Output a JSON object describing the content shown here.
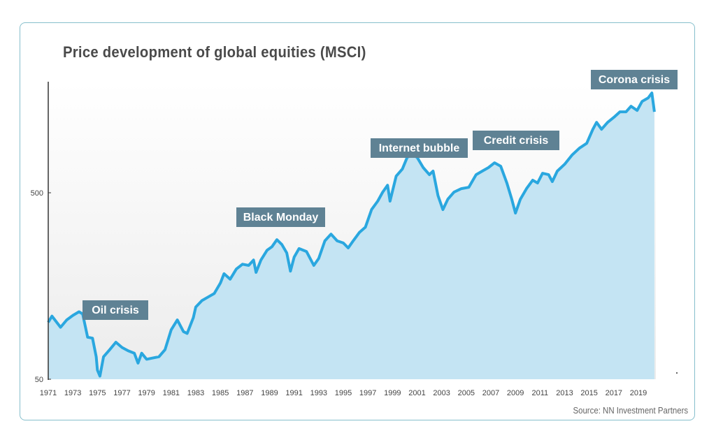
{
  "chart_data": {
    "type": "area",
    "title": "Price development of global equities (MSCI)",
    "source": "Source: NN Investment Partners",
    "y_scale": "log",
    "ylim": [
      50,
      1800
    ],
    "y_ticks": [
      "50",
      "500"
    ],
    "x_ticks": [
      "1971",
      "1973",
      "1975",
      "1977",
      "1979",
      "1981",
      "1983",
      "1985",
      "1987",
      "1989",
      "1991",
      "1993",
      "1995",
      "1997",
      "1999",
      "2001",
      "2003",
      "2005",
      "2007",
      "2009",
      "2011",
      "2013",
      "2015",
      "2017",
      "2019"
    ],
    "xlim": [
      1971,
      2020.3
    ],
    "grid": false,
    "colors": {
      "line": "#2aa7df",
      "fill": "#c4e4f3",
      "annotation": "#5f8294"
    },
    "annotations": [
      {
        "label": "Oil crisis",
        "year": 1974
      },
      {
        "label": "Black Monday",
        "year": 1987
      },
      {
        "label": "Internet bubble",
        "year": 2000
      },
      {
        "label": "Credit crisis",
        "year": 2008
      },
      {
        "label": "Corona crisis",
        "year": 2020
      }
    ],
    "series": [
      {
        "x": [
          1971.0,
          1971.3,
          1972,
          1972.5,
          1973,
          1973.5,
          1973.8,
          1974.2,
          1974.6,
          1974.9,
          1975.0,
          1975.2,
          1975.5,
          1976,
          1976.5,
          1977,
          1977.5,
          1978,
          1978.3,
          1978.6,
          1979,
          1979.5,
          1980,
          1980.5,
          1981,
          1981.5,
          1982,
          1982.3,
          1982.8,
          1983,
          1983.5,
          1984,
          1984.5,
          1985,
          1985.3,
          1985.8,
          1986.3,
          1986.8,
          1987.3,
          1987.7,
          1987.9,
          1988.3,
          1988.8,
          1989.2,
          1989.6,
          1990.0,
          1990.4,
          1990.7,
          1991.0,
          1991.4,
          1992,
          1992.6,
          1993.0,
          1993.5,
          1994,
          1994.5,
          1995,
          1995.4,
          1995.8,
          1996.3,
          1996.8,
          1997.3,
          1997.8,
          1998.2,
          1998.6,
          1998.8,
          1999.3,
          1999.8,
          2000.2,
          2000.6,
          2001.0,
          2001.5,
          2002.0,
          2002.3,
          2002.7,
          2003.1,
          2003.5,
          2004,
          2004.6,
          2005.2,
          2005.8,
          2006.3,
          2006.8,
          2007.3,
          2007.8,
          2008.3,
          2008.7,
          2009.0,
          2009.4,
          2009.9,
          2010.4,
          2010.8,
          2011.2,
          2011.7,
          2012,
          2012.4,
          2013,
          2013.6,
          2014.2,
          2014.8,
          2015.3,
          2015.6,
          2016,
          2016.5,
          2017,
          2017.5,
          2018,
          2018.4,
          2018.9,
          2019.3,
          2019.8,
          2020.1,
          2020.3
        ],
        "values": [
          101,
          109,
          95,
          104,
          110,
          115,
          112,
          84,
          83,
          66,
          56,
          52,
          66,
          72,
          79,
          74,
          71,
          69,
          61,
          69,
          64,
          65,
          66,
          72,
          92,
          104,
          90,
          88,
          107,
          122,
          132,
          138,
          144,
          164,
          184,
          172,
          195,
          207,
          204,
          218,
          187,
          218,
          246,
          257,
          280,
          264,
          238,
          190,
          226,
          251,
          242,
          204,
          222,
          276,
          300,
          276,
          269,
          253,
          276,
          306,
          327,
          406,
          451,
          504,
          549,
          451,
          614,
          670,
          775,
          796,
          775,
          682,
          625,
          653,
          483,
          406,
          462,
          504,
          526,
          535,
          625,
          653,
          682,
          724,
          694,
          564,
          462,
          389,
          462,
          526,
          584,
          564,
          636,
          625,
          574,
          653,
          711,
          796,
          867,
          921,
          1095,
          1193,
          1095,
          1193,
          1268,
          1358,
          1358,
          1455,
          1382,
          1545,
          1614,
          1715,
          1358
        ]
      }
    ]
  }
}
